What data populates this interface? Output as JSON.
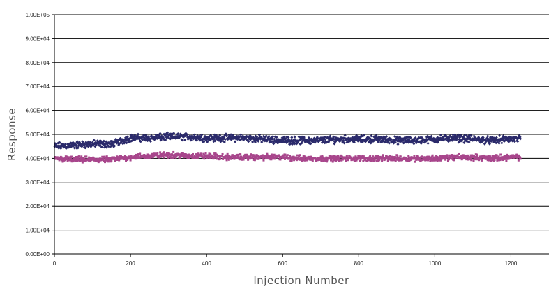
{
  "colors": {
    "series_a": "#2b2a6b",
    "series_b": "#a8468c",
    "grid": "#000000",
    "axis": "#000000"
  },
  "chart_data": {
    "type": "scatter",
    "title": "",
    "xlabel": "Injection Number",
    "ylabel": "Response",
    "xlim": [
      0,
      1300
    ],
    "ylim": [
      0,
      100000
    ],
    "grid": true,
    "legend": "none",
    "x_ticks": [
      {
        "value": 0,
        "label": "0"
      },
      {
        "value": 200,
        "label": "200"
      },
      {
        "value": 400,
        "label": "400"
      },
      {
        "value": 600,
        "label": "600"
      },
      {
        "value": 800,
        "label": "800"
      },
      {
        "value": 1000,
        "label": "1000"
      },
      {
        "value": 1200,
        "label": "1200"
      }
    ],
    "y_ticks": [
      {
        "value": 0,
        "label": "0.00E+00"
      },
      {
        "value": 10000,
        "label": "1.00E+04"
      },
      {
        "value": 20000,
        "label": "2.00E+04"
      },
      {
        "value": 30000,
        "label": "3.00E+04"
      },
      {
        "value": 40000,
        "label": "4.00E+04"
      },
      {
        "value": 50000,
        "label": "5.00E+04"
      },
      {
        "value": 60000,
        "label": "6.00E+04"
      },
      {
        "value": 70000,
        "label": "7.00E+04"
      },
      {
        "value": 80000,
        "label": "8.00E+04"
      },
      {
        "value": 90000,
        "label": "9.00E+04"
      },
      {
        "value": 100000,
        "label": "1.00E+05"
      }
    ],
    "series": [
      {
        "marker": "diamond",
        "color": "#2b2a6b",
        "x": [
          0,
          50,
          100,
          150,
          200,
          250,
          300,
          350,
          400,
          450,
          500,
          550,
          600,
          650,
          700,
          750,
          800,
          850,
          900,
          950,
          1000,
          1050,
          1100,
          1150,
          1200,
          1225
        ],
        "values": [
          45000,
          45500,
          46000,
          46000,
          48500,
          48500,
          49000,
          49000,
          48500,
          48500,
          48500,
          48000,
          47500,
          47500,
          47500,
          48000,
          48000,
          48000,
          47500,
          47500,
          48000,
          48500,
          48000,
          47500,
          48000,
          48000
        ],
        "spread": 1500
      },
      {
        "marker": "square",
        "color": "#a8468c",
        "x": [
          0,
          50,
          100,
          150,
          200,
          250,
          300,
          350,
          400,
          450,
          500,
          550,
          600,
          650,
          700,
          750,
          800,
          850,
          900,
          950,
          1000,
          1050,
          1100,
          1150,
          1200,
          1225
        ],
        "values": [
          40000,
          39500,
          39500,
          39500,
          40500,
          41000,
          41500,
          41000,
          41000,
          40500,
          40500,
          40500,
          40500,
          40000,
          40000,
          40000,
          40000,
          40000,
          40000,
          40000,
          40000,
          40500,
          40500,
          40000,
          40500,
          40500
        ],
        "spread": 1200
      }
    ]
  }
}
